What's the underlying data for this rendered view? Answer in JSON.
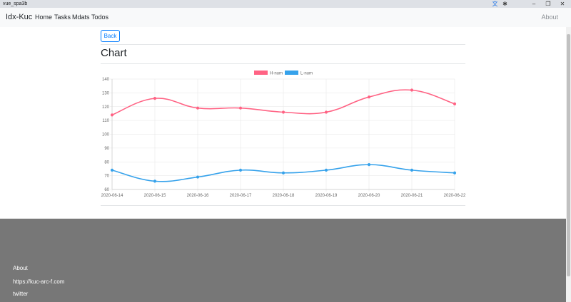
{
  "window": {
    "tab_title": "vue_spa3b"
  },
  "navbar": {
    "brand": "Idx-Kuc",
    "items": [
      "Home",
      "Tasks",
      "Mdats",
      "Todos"
    ],
    "right_link": "About"
  },
  "main": {
    "back_label": "Back",
    "title": "Chart"
  },
  "chart_data": {
    "type": "line",
    "categories": [
      "2020-06-14",
      "2020-06-15",
      "2020-06-16",
      "2020-06-17",
      "2020-06-18",
      "2020-06-19",
      "2020-06-20",
      "2020-06-21",
      "2020-06-22"
    ],
    "series": [
      {
        "name": "H-num",
        "color": "#ff6384",
        "values": [
          114,
          126,
          119,
          119,
          116,
          116,
          127,
          132,
          122
        ]
      },
      {
        "name": "L-num",
        "color": "#36a2eb",
        "values": [
          74,
          66,
          69,
          74,
          72,
          74,
          78,
          74,
          72
        ]
      }
    ],
    "ylim": [
      60,
      140
    ],
    "yticks": [
      "140",
      "130",
      "120",
      "110",
      "100",
      "90",
      "80",
      "70",
      "60"
    ],
    "grid": true,
    "legend": "top-center",
    "curve": "smooth"
  },
  "footer": {
    "links": [
      "About",
      "https://kuc-arc-f.com",
      "twitter"
    ]
  },
  "colors": {
    "primary": "#007bff",
    "footer_bg": "#777777",
    "navbar_bg": "#f8f9fa"
  }
}
